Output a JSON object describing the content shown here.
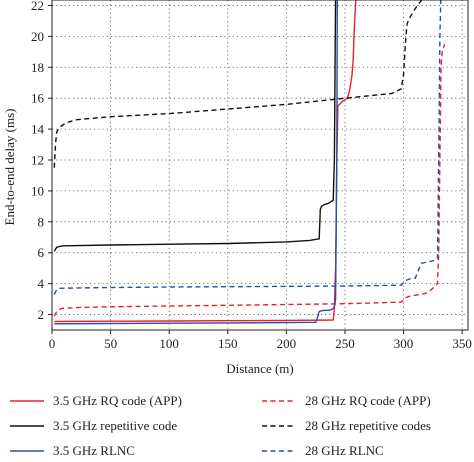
{
  "chart_data": {
    "type": "line",
    "title": "",
    "xlabel": "Distance (m)",
    "ylabel": "End-to-end delay (ms)",
    "xlim": [
      0,
      355
    ],
    "ylim": [
      1,
      23
    ],
    "xticks": [
      0,
      50,
      100,
      150,
      200,
      250,
      300,
      350
    ],
    "yticks": [
      2,
      4,
      6,
      8,
      10,
      12,
      14,
      16,
      18,
      20,
      22
    ],
    "grid": true,
    "grid_style": "dotted",
    "legend_position": "bottom",
    "series": [
      {
        "name": "3.5 GHz RQ code (APP)",
        "color": "#e8202a",
        "dash": "solid",
        "x": [
          2,
          50,
          100,
          150,
          200,
          240,
          241,
          242,
          243,
          244,
          248,
          252,
          254,
          256,
          257,
          258,
          259,
          260,
          262
        ],
        "y": [
          1.55,
          1.57,
          1.58,
          1.6,
          1.62,
          1.65,
          2.4,
          5,
          12,
          15.5,
          15.8,
          16,
          16.5,
          17.5,
          18.5,
          20.5,
          22,
          23,
          23
        ]
      },
      {
        "name": "3.5 GHz repetitive code",
        "color": "#111111",
        "dash": "solid",
        "x": [
          2,
          4,
          6,
          10,
          50,
          100,
          150,
          200,
          220,
          228,
          229,
          230,
          232,
          236,
          238,
          240,
          241,
          242
        ],
        "y": [
          6.1,
          6.35,
          6.4,
          6.45,
          6.5,
          6.55,
          6.6,
          6.7,
          6.8,
          6.9,
          8.8,
          9,
          9.1,
          9.2,
          9.3,
          9.4,
          12,
          23
        ]
      },
      {
        "name": "3.5 GHz RLNC",
        "color": "#2c4fa3",
        "dash": "solid",
        "x": [
          2,
          50,
          100,
          150,
          200,
          225,
          227,
          228,
          230,
          238,
          240,
          241,
          242,
          243,
          243.5
        ],
        "y": [
          1.4,
          1.42,
          1.44,
          1.46,
          1.48,
          1.5,
          1.9,
          2.2,
          2.25,
          2.3,
          2.4,
          2.5,
          3,
          12,
          23
        ]
      },
      {
        "name": "28 GHz RQ code (APP)",
        "color": "#e8202a",
        "dash": "dashed",
        "x": [
          2,
          4,
          8,
          20,
          50,
          100,
          150,
          200,
          250,
          298,
          302,
          306,
          310,
          315,
          320,
          325,
          329,
          330,
          331,
          332,
          333,
          335
        ],
        "y": [
          1.9,
          2.2,
          2.4,
          2.45,
          2.5,
          2.55,
          2.6,
          2.65,
          2.7,
          2.8,
          3.1,
          3.2,
          3.25,
          3.3,
          3.4,
          3.7,
          4,
          6,
          12,
          18,
          19,
          19.5
        ]
      },
      {
        "name": "28 GHz repetitive codes",
        "color": "#111111",
        "dash": "dashed",
        "x": [
          2,
          3,
          4,
          6,
          8,
          12,
          20,
          50,
          100,
          150,
          200,
          250,
          290,
          298,
          300,
          302,
          303,
          304,
          306,
          310,
          315,
          320,
          325
        ],
        "y": [
          11.5,
          13,
          13.8,
          14.1,
          14.2,
          14.4,
          14.6,
          14.8,
          15,
          15.3,
          15.6,
          16,
          16.3,
          16.6,
          17.5,
          20,
          20.8,
          21,
          21.3,
          21.8,
          22.3,
          22.8,
          23
        ]
      },
      {
        "name": "28 GHz RLNC",
        "color": "#2c4fa3",
        "dash": "dashed",
        "x": [
          2,
          4,
          6,
          20,
          50,
          100,
          150,
          200,
          250,
          298,
          302,
          305,
          310,
          315,
          320,
          324,
          326,
          329,
          330,
          331,
          332
        ],
        "y": [
          3.3,
          3.6,
          3.7,
          3.72,
          3.75,
          3.78,
          3.8,
          3.82,
          3.85,
          3.9,
          4.2,
          4.3,
          4.35,
          5.3,
          5.4,
          5.45,
          5.5,
          5.6,
          12,
          20,
          23
        ]
      }
    ]
  }
}
